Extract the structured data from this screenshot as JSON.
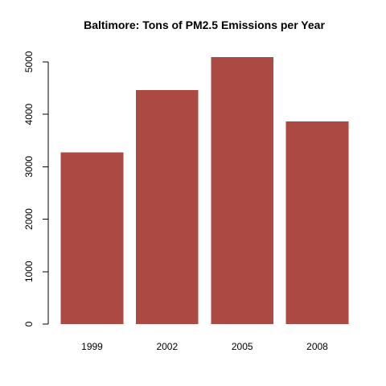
{
  "chart_data": {
    "type": "bar",
    "title": "Baltimore: Tons of PM2.5 Emissions per Year",
    "xlabel": "",
    "ylabel": "",
    "categories": [
      "1999",
      "2002",
      "2005",
      "2008"
    ],
    "series": [
      {
        "values": [
          3274,
          4462,
          5093,
          3862
        ]
      }
    ],
    "ylim": [
      0,
      5274
    ],
    "yticks": [
      "0",
      "1000",
      "2000",
      "3000",
      "4000",
      "5000"
    ],
    "grid": false,
    "legend": "none",
    "bar_color": "#AB4A43"
  }
}
